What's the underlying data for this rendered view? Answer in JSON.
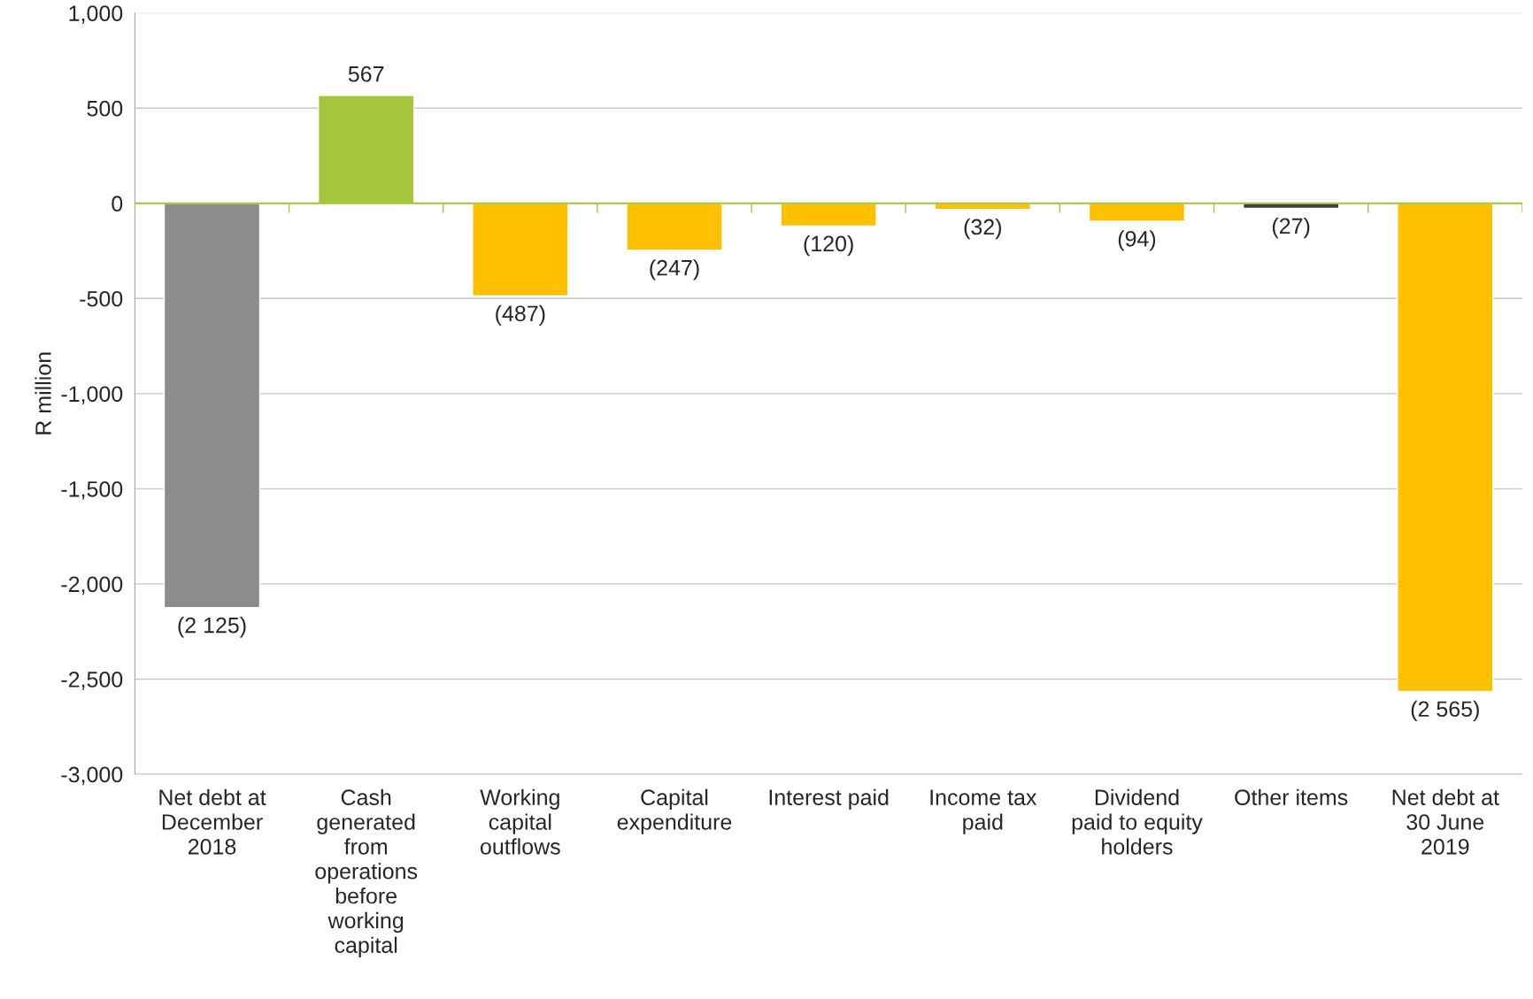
{
  "chart_data": {
    "type": "bar",
    "ylabel": "R million",
    "categories": [
      "Net debt at\nDecember\n2018",
      "Cash\ngenerated\nfrom\noperations\nbefore\nworking\ncapital",
      "Working\ncapital\noutflows",
      "Capital\nexpenditure",
      "Interest paid",
      "Income tax\npaid",
      "Dividend\npaid to equity\nholders",
      "Other items",
      "Net debt at\n30 June\n2019"
    ],
    "values": [
      -2125,
      567,
      -487,
      -247,
      -120,
      -32,
      -94,
      -27,
      -2565
    ],
    "colors": [
      "#8c8c8c",
      "#a5c63b",
      "#ffc000",
      "#ffc000",
      "#ffc000",
      "#ffc000",
      "#ffc000",
      "#3a3f44",
      "#ffc000"
    ],
    "value_labels": [
      "(2 125)",
      "567",
      "(487)",
      "(247)",
      "(120)",
      "(32)",
      "(94)",
      "(27)",
      "(2 565)"
    ],
    "ylim": [
      -3000,
      1000
    ],
    "yticks": [
      {
        "value": -3000,
        "label": "-3,000"
      },
      {
        "value": -2500,
        "label": "-2,500"
      },
      {
        "value": -2000,
        "label": "-2,000"
      },
      {
        "value": -1500,
        "label": "-1,500"
      },
      {
        "value": -1000,
        "label": "-1,000"
      },
      {
        "value": -500,
        "label": "-500"
      },
      0,
      500,
      {
        "value": 1000,
        "label": "1,000"
      }
    ],
    "ref_lines": [
      {
        "axis": "y",
        "value": 0,
        "color": "#a5c63b"
      }
    ],
    "grid": "y",
    "legend": false
  }
}
